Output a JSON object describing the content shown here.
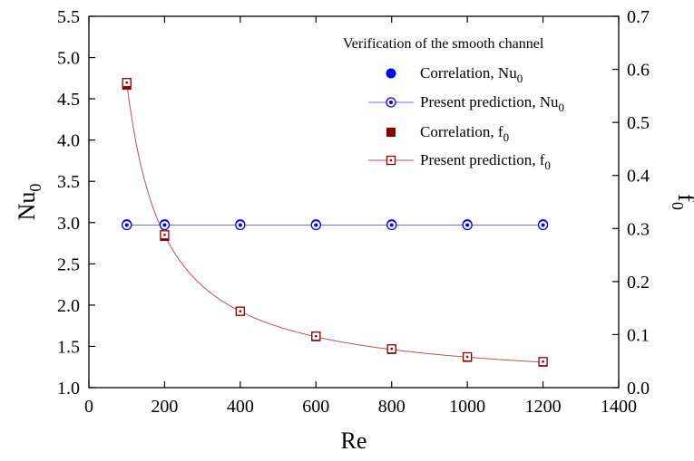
{
  "chart_data": {
    "type": "scatter",
    "xlabel": "Re",
    "ylabel": "Nu",
    "ylabel_sub": "0",
    "y2label": "f",
    "y2label_sub": "0",
    "xlim": [
      0,
      1400
    ],
    "ylim": [
      1.0,
      5.5
    ],
    "y2lim": [
      0.0,
      0.7
    ],
    "xticks": [
      "0",
      "200",
      "400",
      "600",
      "800",
      "1000",
      "1200",
      "1400"
    ],
    "yticks": [
      "1.0",
      "1.5",
      "2.0",
      "2.5",
      "3.0",
      "3.5",
      "4.0",
      "4.5",
      "5.0",
      "5.5"
    ],
    "y2ticks": [
      "0.0",
      "0.1",
      "0.2",
      "0.3",
      "0.4",
      "0.5",
      "0.6",
      "0.7"
    ],
    "grid": false,
    "legend_position": "top-right",
    "legend_title": "Verification of the smooth channel",
    "series": [
      {
        "name": "Correlation, Nu",
        "name_sub": "0",
        "axis": "left",
        "marker": "circle",
        "color": "#0000ff",
        "x": [
          100,
          200,
          400,
          600,
          800,
          1000,
          1200
        ],
        "y": [
          2.98,
          2.98,
          2.98,
          2.98,
          2.98,
          2.98,
          2.98
        ]
      },
      {
        "name": "Present prediction, Nu",
        "name_sub": "0",
        "axis": "left",
        "marker": "circle-open-line",
        "color": "#0000ff",
        "x": [
          100,
          200,
          400,
          600,
          800,
          1000,
          1200
        ],
        "y": [
          2.97,
          2.97,
          2.97,
          2.97,
          2.97,
          2.97,
          2.97
        ]
      },
      {
        "name": "Correlation, f",
        "name_sub": "0",
        "axis": "right",
        "marker": "square",
        "color": "#8b0000",
        "x": [
          100,
          200,
          400,
          600,
          800,
          1000,
          1200
        ],
        "y": [
          0.57,
          0.285,
          0.144,
          0.096,
          0.072,
          0.057,
          0.048
        ]
      },
      {
        "name": "Present prediction, f",
        "name_sub": "0",
        "axis": "right",
        "marker": "square-open-line",
        "color": "#8b0000",
        "x": [
          100,
          200,
          400,
          600,
          800,
          1000,
          1200
        ],
        "y": [
          0.575,
          0.288,
          0.144,
          0.097,
          0.073,
          0.058,
          0.049
        ]
      }
    ]
  }
}
